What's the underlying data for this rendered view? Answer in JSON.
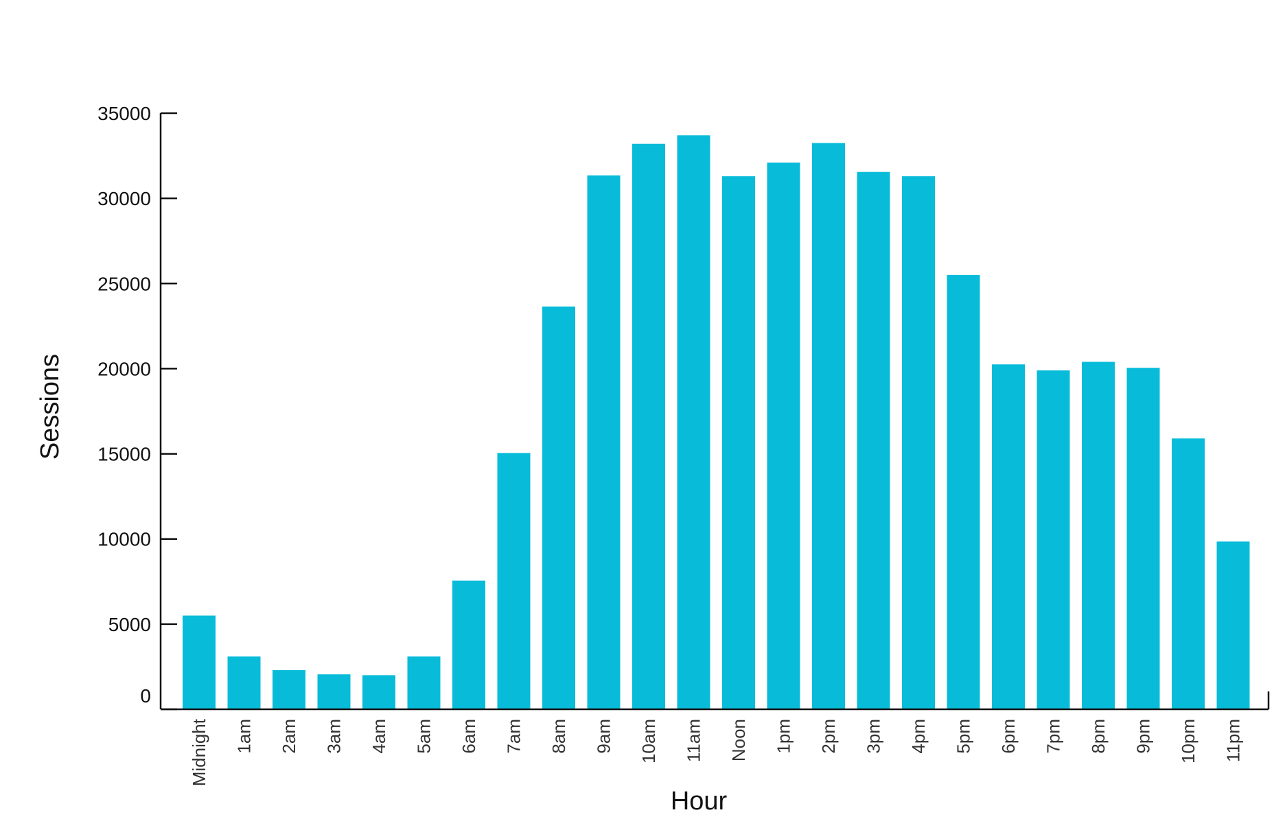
{
  "chart_data": {
    "type": "bar",
    "title": "",
    "xlabel": "Hour",
    "ylabel": "Sessions",
    "categories": [
      "Midnight",
      "1am",
      "2am",
      "3am",
      "4am",
      "5am",
      "6am",
      "7am",
      "8am",
      "9am",
      "10am",
      "11am",
      "Noon",
      "1pm",
      "2pm",
      "3pm",
      "4pm",
      "5pm",
      "6pm",
      "7pm",
      "8pm",
      "9pm",
      "10pm",
      "11pm"
    ],
    "values": [
      5500,
      3100,
      2300,
      2050,
      2000,
      3100,
      7550,
      15050,
      23650,
      31350,
      33200,
      33700,
      31300,
      32100,
      33250,
      31550,
      31300,
      25500,
      20250,
      19900,
      20400,
      20050,
      15900,
      9850
    ],
    "ylim": [
      0,
      35000
    ],
    "yticks": [
      "0",
      "5000",
      "10000",
      "15000",
      "20000",
      "25000",
      "30000",
      "35000"
    ],
    "grid": false,
    "legend": "none",
    "bar_color": "#08BCD9",
    "axis_color": "#111111"
  }
}
